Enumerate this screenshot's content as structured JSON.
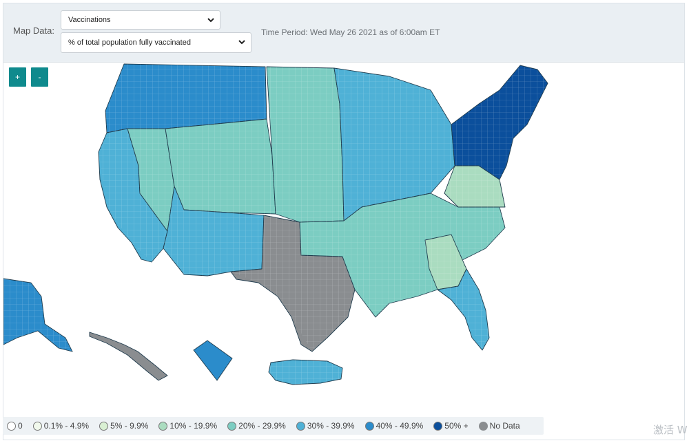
{
  "controls": {
    "map_data_label": "Map Data:",
    "measure_select": {
      "value": "Vaccinations"
    },
    "metric_select": {
      "value": "% of total population fully vaccinated"
    },
    "time_period": "Time Period: Wed May 26 2021 as of 6:00am ET"
  },
  "zoom": {
    "in_label": "+",
    "out_label": "-"
  },
  "legend": [
    {
      "label": "0",
      "color": "#ffffff"
    },
    {
      "label": "0.1% - 4.9%",
      "color": "#f1f9ec"
    },
    {
      "label": "5% - 9.9%",
      "color": "#d9f0d3"
    },
    {
      "label": "10% - 19.9%",
      "color": "#aadcc0"
    },
    {
      "label": "20% - 29.9%",
      "color": "#7ccdc2"
    },
    {
      "label": "30% - 39.9%",
      "color": "#4fb1d6"
    },
    {
      "label": "40% - 49.9%",
      "color": "#2b8ccb"
    },
    {
      "label": "50% +",
      "color": "#0b4f9c"
    },
    {
      "label": "No Data",
      "color": "#8a8d90"
    }
  ],
  "regions": [
    {
      "name": "Pacific Northwest",
      "bin": "40% - 49.9%"
    },
    {
      "name": "California",
      "bin": "30% - 39.9%"
    },
    {
      "name": "Nevada",
      "bin": "20% - 29.9%"
    },
    {
      "name": "Mountain West",
      "bin": "20% - 29.9%"
    },
    {
      "name": "Arizona / New Mexico",
      "bin": "30% - 39.9%"
    },
    {
      "name": "Great Plains",
      "bin": "20% - 29.9%"
    },
    {
      "name": "Texas",
      "bin": "No Data"
    },
    {
      "name": "Midwest",
      "bin": "30% - 39.9%"
    },
    {
      "name": "South",
      "bin": "20% - 29.9%"
    },
    {
      "name": "West Virginia / Virginia",
      "bin": "10% - 19.9%"
    },
    {
      "name": "Georgia",
      "bin": "10% - 19.9%"
    },
    {
      "name": "Northeast",
      "bin": "50% +"
    },
    {
      "name": "Florida",
      "bin": "30% - 39.9%"
    },
    {
      "name": "Alaska",
      "bin": "40% - 49.9%"
    },
    {
      "name": "Hawaii",
      "bin": "No Data"
    },
    {
      "name": "Puerto Rico",
      "bin": "30% - 39.9%"
    }
  ],
  "watermark": "激活 W"
}
